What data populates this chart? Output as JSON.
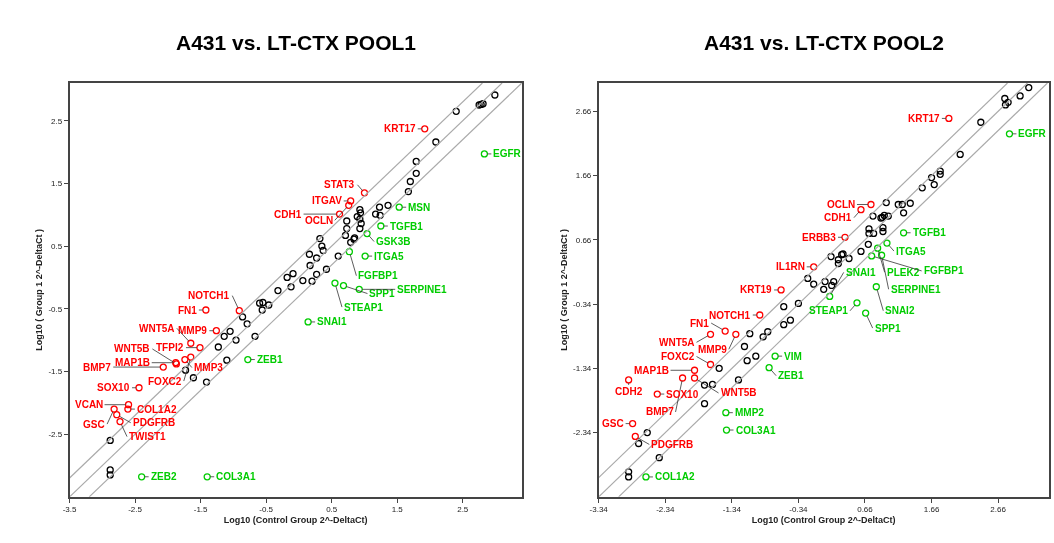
{
  "chart_data": [
    {
      "type": "scatter",
      "title": "A431 vs. LT-CTX POOL1",
      "xlabel": "Log10 (Control Group 2^-DeltaCt)",
      "ylabel": "Log10 ( Group 1 2^-DeltaCt )",
      "xlim": [
        -3.5,
        3.4
      ],
      "ylim": [
        -3.5,
        3.1
      ],
      "xticks": [
        -3.5,
        -2.5,
        -1.5,
        -0.5,
        0.5,
        1.5,
        2.5
      ],
      "yticks": [
        -2.5,
        -1.5,
        -0.5,
        0.5,
        1.5,
        2.5
      ],
      "marker": "circle",
      "series": [
        {
          "color": "#000000",
          "x": [
            -1.73,
            -1.61,
            -1.41,
            -1.1,
            -1.23,
            -1.14,
            -1.05,
            -0.96,
            -0.86,
            -0.79,
            -0.67,
            -0.6,
            -0.55,
            -0.56,
            -0.46,
            -0.32,
            -0.18,
            -0.12,
            -2.88,
            -2.88,
            -2.88,
            2.99,
            2.81,
            2.78,
            2.75,
            2.4,
            2.09,
            1.79,
            1.79,
            1.7,
            1.67,
            1.36,
            1.23,
            1.17,
            1.24,
            0.93,
            0.94,
            0.89,
            0.93,
            0.95,
            0.93,
            0.73,
            0.73,
            0.71,
            0.85,
            0.84,
            0.79,
            0.32,
            0.35,
            0.37,
            0.16,
            0.27,
            0.17,
            0.6,
            0.42,
            0.27,
            0.2,
            0.06,
            -0.09
          ],
          "values": [
            -1.48,
            -1.6,
            -1.67,
            -1.32,
            -1.11,
            -0.94,
            -0.86,
            -1.0,
            -0.63,
            -0.74,
            -0.94,
            -0.41,
            -0.4,
            -0.52,
            -0.44,
            -0.21,
            0.0,
            -0.15,
            -2.6,
            -3.07,
            -3.15,
            2.91,
            2.77,
            2.76,
            2.75,
            2.65,
            2.16,
            1.85,
            1.66,
            1.53,
            1.37,
            1.15,
            1.12,
            1.01,
            0.99,
            1.08,
            1.03,
            0.97,
            0.93,
            0.86,
            0.78,
            0.9,
            0.78,
            0.67,
            0.63,
            0.61,
            0.56,
            0.62,
            0.5,
            0.43,
            0.37,
            0.31,
            0.19,
            0.34,
            0.13,
            0.05,
            -0.06,
            -0.05,
            0.06
          ]
        },
        {
          "color": "#ff0000",
          "x": [
            -0.91,
            -1.42,
            -1.26,
            -1.51,
            -1.65,
            -1.65,
            -1.74,
            -1.88,
            -1.87,
            -2.07,
            -2.44,
            -2.6,
            -2.61,
            -2.82,
            -2.78,
            -2.73,
            1.92,
            1.0,
            0.79,
            0.76,
            0.62
          ],
          "values": [
            -0.53,
            -0.52,
            -0.85,
            -1.12,
            -1.05,
            -1.27,
            -1.31,
            -1.36,
            -1.38,
            -1.43,
            -1.76,
            -2.03,
            -2.1,
            -2.1,
            -2.19,
            -2.3,
            2.37,
            1.35,
            1.22,
            1.15,
            1.01
          ]
        },
        {
          "color": "#00cc00",
          "x": [
            -0.78,
            -2.4,
            -1.4,
            2.83,
            1.53,
            1.25,
            1.04,
            1.01,
            0.77,
            0.55,
            0.68,
            0.92,
            0.14
          ],
          "values": [
            -1.31,
            -3.18,
            -3.18,
            1.97,
            1.12,
            0.82,
            0.7,
            0.34,
            0.41,
            -0.09,
            -0.13,
            -0.19,
            -0.71
          ]
        },
        {
          "type": "line",
          "marker": "none",
          "color": "#aaaaaa",
          "x": [
            -3.5,
            3.1
          ],
          "values": [
            -3.5,
            3.1
          ]
        },
        {
          "type": "line",
          "marker": "none",
          "color": "#aaaaaa",
          "x": [
            -3.5,
            2.8
          ],
          "values": [
            -3.2,
            3.1
          ]
        },
        {
          "type": "line",
          "marker": "none",
          "color": "#aaaaaa",
          "x": [
            -3.2,
            3.4
          ],
          "values": [
            -3.5,
            3.1
          ]
        }
      ],
      "annotations": [
        {
          "text": "NOTCH1",
          "x": -0.91,
          "y": -0.53
        },
        {
          "text": "FN1",
          "x": -1.42,
          "y": -0.52
        },
        {
          "text": "MMP9",
          "x": -1.26,
          "y": -0.85
        },
        {
          "text": "TFPI2",
          "x": -1.51,
          "y": -1.12
        },
        {
          "text": "WNT5A",
          "x": -1.65,
          "y": -1.05
        },
        {
          "text": "FOXC2",
          "x": -1.65,
          "y": -1.27
        },
        {
          "text": "MMP3",
          "x": -1.74,
          "y": -1.31
        },
        {
          "text": "MAP1B",
          "x": -1.88,
          "y": -1.36
        },
        {
          "text": "WNT5B",
          "x": -1.87,
          "y": -1.38
        },
        {
          "text": "BMP7",
          "x": -2.07,
          "y": -1.43
        },
        {
          "text": "SOX10",
          "x": -2.44,
          "y": -1.76
        },
        {
          "text": "VCAN",
          "x": -2.6,
          "y": -2.03
        },
        {
          "text": "COL1A2",
          "x": -2.61,
          "y": -2.1
        },
        {
          "text": "GSC",
          "x": -2.82,
          "y": -2.1
        },
        {
          "text": "PDGFRB",
          "x": -2.78,
          "y": -2.19
        },
        {
          "text": "TWIST1",
          "x": -2.73,
          "y": -2.3
        },
        {
          "text": "KRT17",
          "x": 1.92,
          "y": 2.37
        },
        {
          "text": "STAT3",
          "x": 1.0,
          "y": 1.35
        },
        {
          "text": "ITGAV",
          "x": 0.79,
          "y": 1.22
        },
        {
          "text": "OCLN",
          "x": 0.76,
          "y": 1.15
        },
        {
          "text": "CDH1",
          "x": 0.62,
          "y": 1.01
        },
        {
          "text": "ZEB1",
          "x": -0.78,
          "y": -1.31
        },
        {
          "text": "ZEB2",
          "x": -2.4,
          "y": -3.18
        },
        {
          "text": "COL3A1",
          "x": -1.4,
          "y": -3.18
        },
        {
          "text": "EGFR",
          "x": 2.83,
          "y": 1.97
        },
        {
          "text": "MSN",
          "x": 1.53,
          "y": 1.12
        },
        {
          "text": "TGFB1",
          "x": 1.25,
          "y": 0.82
        },
        {
          "text": "GSK3B",
          "x": 1.04,
          "y": 0.7
        },
        {
          "text": "ITGA5",
          "x": 1.01,
          "y": 0.34
        },
        {
          "text": "FGFBP1",
          "x": 0.77,
          "y": 0.41
        },
        {
          "text": "STEAP1",
          "x": 0.55,
          "y": -0.09
        },
        {
          "text": "SPP1",
          "x": 0.68,
          "y": -0.13
        },
        {
          "text": "SERPINE1",
          "x": 0.92,
          "y": -0.19
        },
        {
          "text": "SNAI1",
          "x": 0.14,
          "y": -0.71
        }
      ]
    },
    {
      "type": "scatter",
      "title": "A431 vs. LT-CTX POOL2",
      "xlabel": "Log10 (Control Group 2^-DeltaCt)",
      "ylabel": "Log10 ( Group 1 2^-DeltaCt )",
      "xlim": [
        -3.34,
        3.42
      ],
      "ylim": [
        -3.34,
        3.1
      ],
      "xticks": [
        -3.34,
        -2.34,
        -1.34,
        -0.34,
        0.66,
        1.66,
        2.66
      ],
      "yticks": [
        -2.34,
        -1.34,
        -0.34,
        0.66,
        1.66,
        2.66
      ],
      "marker": "circle",
      "series": [
        {
          "color": "#000000",
          "x": [
            -2.61,
            -2.74,
            -2.43,
            -2.89,
            -2.89,
            -1.75,
            -1.63,
            -1.75,
            -1.53,
            -1.24,
            -1.11,
            -0.98,
            -1.15,
            -1.07,
            -0.87,
            -0.8,
            -0.56,
            -0.56,
            -0.46,
            -0.34,
            -0.2,
            3.12,
            2.99,
            2.76,
            2.81,
            2.77,
            2.4,
            2.09,
            1.79,
            1.79,
            1.66,
            1.7,
            1.52,
            1.34,
            1.22,
            1.16,
            1.24,
            0.98,
            0.78,
            0.9,
            0.92,
            0.95,
            1.01,
            0.72,
            0.72,
            0.79,
            0.93,
            0.93,
            0.71,
            0.6,
            0.42,
            0.31,
            0.33,
            0.26,
            0.26,
            0.15,
            -0.11,
            0.06,
            0.04,
            0.16,
            0.19
          ],
          "values": [
            -2.34,
            -2.51,
            -2.73,
            -2.95,
            -3.03,
            -1.6,
            -1.59,
            -1.89,
            -1.34,
            -1.52,
            -1.22,
            -1.15,
            -1.0,
            -0.8,
            -0.85,
            -0.77,
            -0.38,
            -0.66,
            -0.59,
            -0.33,
            0.06,
            3.03,
            2.9,
            2.86,
            2.8,
            2.76,
            2.49,
            1.99,
            1.73,
            1.68,
            1.63,
            1.52,
            1.47,
            1.23,
            1.21,
            1.21,
            1.08,
            1.24,
            1.03,
            1.0,
            1.01,
            1.04,
            1.03,
            0.83,
            0.76,
            0.76,
            0.85,
            0.79,
            0.59,
            0.48,
            0.37,
            0.43,
            0.44,
            0.35,
            0.29,
            0.4,
            -0.03,
            0.01,
            -0.11,
            -0.05,
            0.01
          ]
        },
        {
          "color": "#ff0000",
          "x": [
            -0.11,
            -0.6,
            -0.92,
            -1.28,
            -1.44,
            -1.66,
            -1.66,
            -1.9,
            -2.08,
            -1.9,
            -2.89,
            -2.46,
            -2.83,
            -2.79,
            1.92,
            0.75,
            0.6,
            0.36
          ],
          "values": [
            0.24,
            -0.12,
            -0.51,
            -0.81,
            -0.76,
            -0.81,
            -1.28,
            -1.37,
            -1.49,
            -1.49,
            -1.52,
            -1.74,
            -2.2,
            -2.4,
            2.55,
            1.21,
            1.13,
            0.7
          ]
        },
        {
          "color": "#00cc00",
          "x": [
            -0.69,
            -0.78,
            -1.43,
            -1.42,
            -2.63,
            2.83,
            1.24,
            0.99,
            0.85,
            0.91,
            0.76,
            0.83,
            0.54,
            0.67,
            0.13
          ],
          "values": [
            -1.15,
            -1.33,
            -2.03,
            -2.3,
            -3.03,
            2.31,
            0.77,
            0.61,
            0.53,
            0.42,
            0.41,
            -0.07,
            -0.32,
            -0.48,
            -0.22
          ]
        },
        {
          "type": "line",
          "marker": "none",
          "color": "#aaaaaa",
          "x": [
            -3.34,
            3.1
          ],
          "values": [
            -3.34,
            3.1
          ]
        },
        {
          "type": "line",
          "marker": "none",
          "color": "#aaaaaa",
          "x": [
            -3.34,
            2.8
          ],
          "values": [
            -3.04,
            3.1
          ]
        },
        {
          "type": "line",
          "marker": "none",
          "color": "#aaaaaa",
          "x": [
            -3.04,
            3.4
          ],
          "values": [
            -3.34,
            3.1
          ]
        }
      ],
      "annotations": [
        {
          "text": "IL1RN",
          "x": -0.11,
          "y": 0.24
        },
        {
          "text": "KRT19",
          "x": -0.6,
          "y": -0.12
        },
        {
          "text": "NOTCH1",
          "x": -0.92,
          "y": -0.51
        },
        {
          "text": "MMP9",
          "x": -1.28,
          "y": -0.81
        },
        {
          "text": "FN1",
          "x": -1.44,
          "y": -0.76
        },
        {
          "text": "WNT5A",
          "x": -1.66,
          "y": -0.81
        },
        {
          "text": "FOXC2",
          "x": -1.66,
          "y": -1.28
        },
        {
          "text": "MAP1B",
          "x": -1.9,
          "y": -1.37
        },
        {
          "text": "BMP7",
          "x": -2.08,
          "y": -1.49
        },
        {
          "text": "WNT5B",
          "x": -1.9,
          "y": -1.49
        },
        {
          "text": "CDH2",
          "x": -2.89,
          "y": -1.52
        },
        {
          "text": "SOX10",
          "x": -2.46,
          "y": -1.74
        },
        {
          "text": "GSC",
          "x": -2.83,
          "y": -2.2
        },
        {
          "text": "PDGFRB",
          "x": -2.79,
          "y": -2.4
        },
        {
          "text": "KRT17",
          "x": 1.92,
          "y": 2.55
        },
        {
          "text": "OCLN",
          "x": 0.75,
          "y": 1.21
        },
        {
          "text": "CDH1",
          "x": 0.6,
          "y": 1.13
        },
        {
          "text": "ERBB3",
          "x": 0.36,
          "y": 0.7
        },
        {
          "text": "VIM",
          "x": -0.69,
          "y": -1.15
        },
        {
          "text": "ZEB1",
          "x": -0.78,
          "y": -1.33
        },
        {
          "text": "MMP2",
          "x": -1.43,
          "y": -2.03
        },
        {
          "text": "COL3A1",
          "x": -1.42,
          "y": -2.3
        },
        {
          "text": "COL1A2",
          "x": -2.63,
          "y": -3.03
        },
        {
          "text": "EGFR",
          "x": 2.83,
          "y": 2.31
        },
        {
          "text": "TGFB1",
          "x": 1.24,
          "y": 0.77
        },
        {
          "text": "ITGA5",
          "x": 0.99,
          "y": 0.61
        },
        {
          "text": "PLEK2",
          "x": 0.85,
          "y": 0.53
        },
        {
          "text": "SERPINE1",
          "x": 0.91,
          "y": 0.42
        },
        {
          "text": "FGFBP1",
          "x": 0.76,
          "y": 0.41
        },
        {
          "text": "SNAI2",
          "x": 0.83,
          "y": -0.07
        },
        {
          "text": "STEAP1",
          "x": 0.54,
          "y": -0.32
        },
        {
          "text": "SPP1",
          "x": 0.67,
          "y": -0.48
        },
        {
          "text": "SNAI1",
          "x": 0.13,
          "y": -0.22
        }
      ]
    }
  ]
}
